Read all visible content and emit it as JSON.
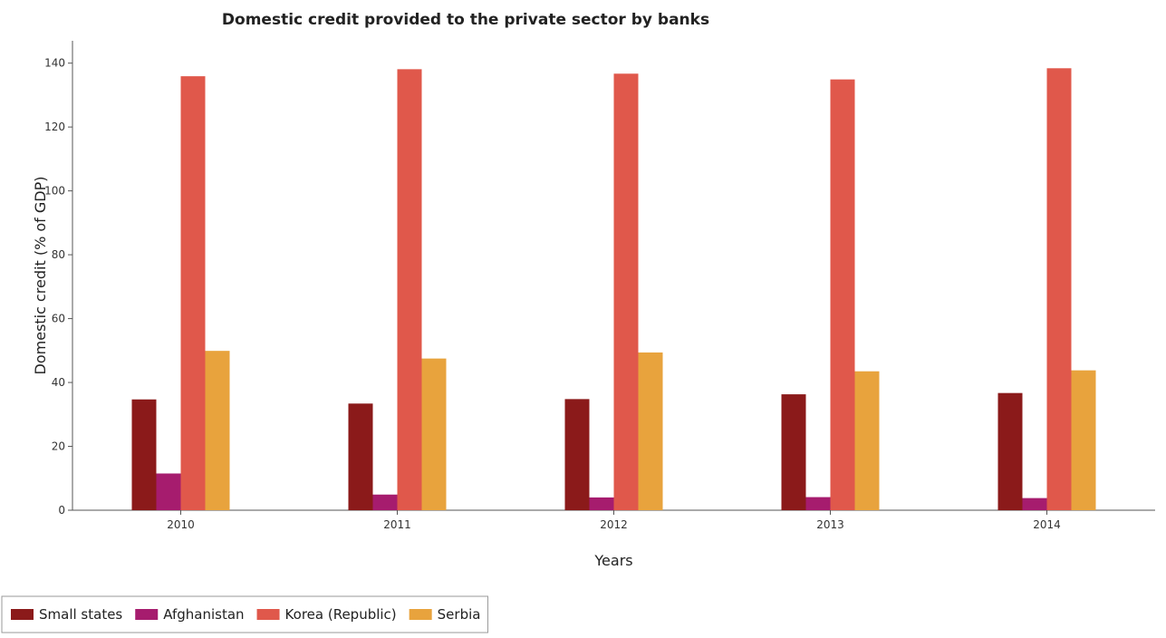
{
  "chart_data": {
    "type": "bar",
    "title": "Domestic credit provided to the private sector by banks",
    "xlabel": "Years",
    "ylabel": "Domestic credit (% of GDP)",
    "categories": [
      "2010",
      "2011",
      "2012",
      "2013",
      "2014"
    ],
    "ylim": [
      0,
      147
    ],
    "yticks": [
      "0",
      "20",
      "40",
      "60",
      "80",
      "100",
      "120",
      "140"
    ],
    "grid": false,
    "legend_position": "bottom-left",
    "series": [
      {
        "name": "Small states",
        "color": "#8b1a1a",
        "values": [
          34.7,
          33.4,
          34.8,
          36.3,
          36.7
        ]
      },
      {
        "name": "Afghanistan",
        "color": "#a61c6e",
        "values": [
          11.5,
          4.9,
          4.0,
          4.1,
          3.8
        ]
      },
      {
        "name": "Korea (Republic)",
        "color": "#e0584b",
        "values": [
          135.9,
          138.1,
          136.7,
          134.9,
          138.4
        ]
      },
      {
        "name": "Serbia",
        "color": "#e8a33d",
        "values": [
          49.9,
          47.5,
          49.4,
          43.5,
          43.8
        ]
      }
    ]
  }
}
